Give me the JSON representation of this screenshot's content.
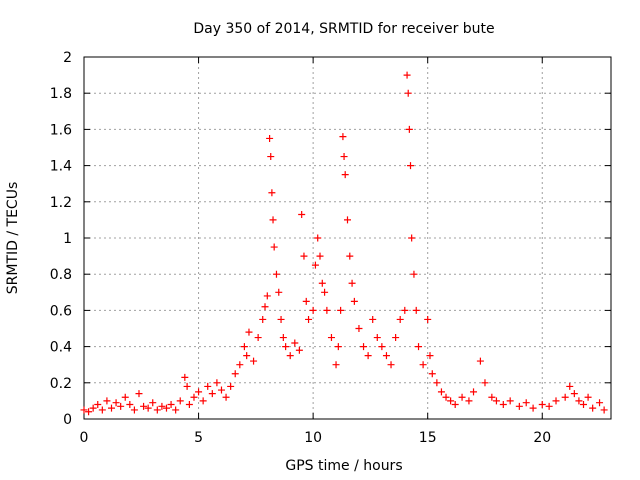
{
  "chart_data": {
    "type": "scatter",
    "title": "Day 350 of 2014, SRMTID for receiver bute",
    "xlabel": "GPS time / hours",
    "ylabel": "SRMTID / TECUs",
    "xlim": [
      0,
      23
    ],
    "ylim": [
      0,
      2
    ],
    "xticks": [
      {
        "value": 0,
        "label": "0"
      },
      {
        "value": 5,
        "label": "5"
      },
      {
        "value": 10,
        "label": "10"
      },
      {
        "value": 15,
        "label": "15"
      },
      {
        "value": 20,
        "label": "20"
      }
    ],
    "yticks": [
      {
        "value": 0,
        "label": "0"
      },
      {
        "value": 0.2,
        "label": "0.2"
      },
      {
        "value": 0.4,
        "label": "0.4"
      },
      {
        "value": 0.6,
        "label": "0.6"
      },
      {
        "value": 0.8,
        "label": "0.8"
      },
      {
        "value": 1.0,
        "label": "1"
      },
      {
        "value": 1.2,
        "label": "1.2"
      },
      {
        "value": 1.4,
        "label": "1.4"
      },
      {
        "value": 1.6,
        "label": "1.6"
      },
      {
        "value": 1.8,
        "label": "1.8"
      },
      {
        "value": 2.0,
        "label": "2"
      }
    ],
    "grid": true,
    "marker": "+",
    "marker_color": "#ff0000",
    "series": [
      {
        "name": "SRMTID",
        "points": [
          [
            0.0,
            0.05
          ],
          [
            0.2,
            0.04
          ],
          [
            0.4,
            0.06
          ],
          [
            0.6,
            0.08
          ],
          [
            0.8,
            0.05
          ],
          [
            1.0,
            0.1
          ],
          [
            1.2,
            0.06
          ],
          [
            1.4,
            0.09
          ],
          [
            1.6,
            0.07
          ],
          [
            1.8,
            0.12
          ],
          [
            2.0,
            0.08
          ],
          [
            2.2,
            0.05
          ],
          [
            2.4,
            0.14
          ],
          [
            2.6,
            0.07
          ],
          [
            2.8,
            0.06
          ],
          [
            3.0,
            0.09
          ],
          [
            3.2,
            0.05
          ],
          [
            3.4,
            0.07
          ],
          [
            3.6,
            0.06
          ],
          [
            3.8,
            0.08
          ],
          [
            4.0,
            0.05
          ],
          [
            4.2,
            0.1
          ],
          [
            4.4,
            0.23
          ],
          [
            4.5,
            0.18
          ],
          [
            4.6,
            0.08
          ],
          [
            4.8,
            0.12
          ],
          [
            5.0,
            0.15
          ],
          [
            5.2,
            0.1
          ],
          [
            5.4,
            0.18
          ],
          [
            5.6,
            0.14
          ],
          [
            5.8,
            0.2
          ],
          [
            6.0,
            0.16
          ],
          [
            6.2,
            0.12
          ],
          [
            6.4,
            0.18
          ],
          [
            6.6,
            0.25
          ],
          [
            6.8,
            0.3
          ],
          [
            7.0,
            0.4
          ],
          [
            7.1,
            0.35
          ],
          [
            7.2,
            0.48
          ],
          [
            7.4,
            0.32
          ],
          [
            7.6,
            0.45
          ],
          [
            7.8,
            0.55
          ],
          [
            7.9,
            0.62
          ],
          [
            8.0,
            0.68
          ],
          [
            8.1,
            1.55
          ],
          [
            8.15,
            1.45
          ],
          [
            8.2,
            1.25
          ],
          [
            8.25,
            1.1
          ],
          [
            8.3,
            0.95
          ],
          [
            8.4,
            0.8
          ],
          [
            8.5,
            0.7
          ],
          [
            8.6,
            0.55
          ],
          [
            8.7,
            0.45
          ],
          [
            8.8,
            0.4
          ],
          [
            9.0,
            0.35
          ],
          [
            9.2,
            0.42
          ],
          [
            9.4,
            0.38
          ],
          [
            9.5,
            1.13
          ],
          [
            9.6,
            0.9
          ],
          [
            9.7,
            0.65
          ],
          [
            9.8,
            0.55
          ],
          [
            10.0,
            0.6
          ],
          [
            10.1,
            0.85
          ],
          [
            10.2,
            1.0
          ],
          [
            10.3,
            0.9
          ],
          [
            10.4,
            0.75
          ],
          [
            10.5,
            0.7
          ],
          [
            10.6,
            0.6
          ],
          [
            10.8,
            0.45
          ],
          [
            11.0,
            0.3
          ],
          [
            11.1,
            0.4
          ],
          [
            11.2,
            0.6
          ],
          [
            11.3,
            1.56
          ],
          [
            11.35,
            1.45
          ],
          [
            11.4,
            1.35
          ],
          [
            11.5,
            1.1
          ],
          [
            11.6,
            0.9
          ],
          [
            11.7,
            0.75
          ],
          [
            11.8,
            0.65
          ],
          [
            12.0,
            0.5
          ],
          [
            12.2,
            0.4
          ],
          [
            12.4,
            0.35
          ],
          [
            12.6,
            0.55
          ],
          [
            12.8,
            0.45
          ],
          [
            13.0,
            0.4
          ],
          [
            13.2,
            0.35
          ],
          [
            13.4,
            0.3
          ],
          [
            13.6,
            0.45
          ],
          [
            13.8,
            0.55
          ],
          [
            14.0,
            0.6
          ],
          [
            14.1,
            1.9
          ],
          [
            14.15,
            1.8
          ],
          [
            14.2,
            1.6
          ],
          [
            14.25,
            1.4
          ],
          [
            14.3,
            1.0
          ],
          [
            14.4,
            0.8
          ],
          [
            14.5,
            0.6
          ],
          [
            14.6,
            0.4
          ],
          [
            14.8,
            0.3
          ],
          [
            15.0,
            0.55
          ],
          [
            15.1,
            0.35
          ],
          [
            15.2,
            0.25
          ],
          [
            15.4,
            0.2
          ],
          [
            15.6,
            0.15
          ],
          [
            15.8,
            0.12
          ],
          [
            16.0,
            0.1
          ],
          [
            16.2,
            0.08
          ],
          [
            16.5,
            0.12
          ],
          [
            16.8,
            0.1
          ],
          [
            17.0,
            0.15
          ],
          [
            17.3,
            0.32
          ],
          [
            17.5,
            0.2
          ],
          [
            17.8,
            0.12
          ],
          [
            18.0,
            0.1
          ],
          [
            18.3,
            0.08
          ],
          [
            18.6,
            0.1
          ],
          [
            19.0,
            0.07
          ],
          [
            19.3,
            0.09
          ],
          [
            19.6,
            0.06
          ],
          [
            20.0,
            0.08
          ],
          [
            20.3,
            0.07
          ],
          [
            20.6,
            0.1
          ],
          [
            21.0,
            0.12
          ],
          [
            21.2,
            0.18
          ],
          [
            21.4,
            0.14
          ],
          [
            21.6,
            0.1
          ],
          [
            21.8,
            0.08
          ],
          [
            22.0,
            0.12
          ],
          [
            22.2,
            0.06
          ],
          [
            22.5,
            0.09
          ],
          [
            22.7,
            0.05
          ]
        ]
      }
    ]
  }
}
